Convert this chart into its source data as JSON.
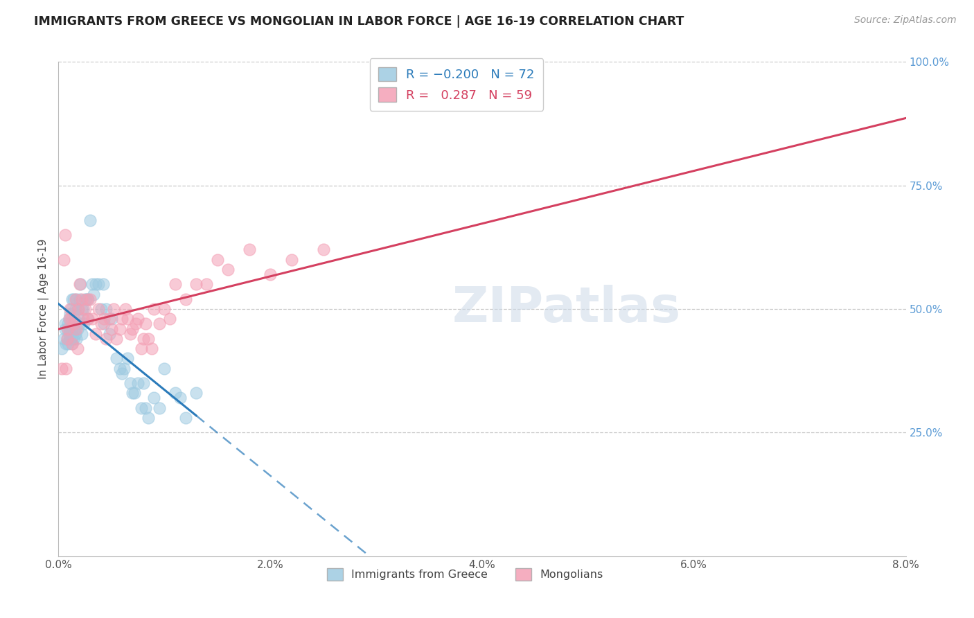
{
  "title": "IMMIGRANTS FROM GREECE VS MONGOLIAN IN LABOR FORCE | AGE 16-19 CORRELATION CHART",
  "source": "Source: ZipAtlas.com",
  "ylabel": "In Labor Force | Age 16-19",
  "xlim": [
    0.0,
    0.08
  ],
  "ylim": [
    0.0,
    1.0
  ],
  "xtick_vals": [
    0.0,
    0.02,
    0.04,
    0.06,
    0.08
  ],
  "xtick_labels": [
    "0.0%",
    "2.0%",
    "4.0%",
    "6.0%",
    "8.0%"
  ],
  "ytick_vals": [
    0.25,
    0.5,
    0.75,
    1.0
  ],
  "ytick_labels": [
    "25.0%",
    "50.0%",
    "75.0%",
    "100.0%"
  ],
  "greece_color": "#9ecae1",
  "mongolia_color": "#f4a0b5",
  "greece_line_color": "#2b7bba",
  "mongolia_line_color": "#d44060",
  "greece_R": -0.2,
  "greece_N": 72,
  "mongolia_R": 0.287,
  "mongolia_N": 59,
  "watermark": "ZIPatlas",
  "greece_x": [
    0.0003,
    0.0005,
    0.0006,
    0.0006,
    0.0007,
    0.0008,
    0.0008,
    0.0009,
    0.0009,
    0.001,
    0.001,
    0.001,
    0.0011,
    0.0011,
    0.0012,
    0.0012,
    0.0012,
    0.0013,
    0.0013,
    0.0014,
    0.0014,
    0.0015,
    0.0015,
    0.0016,
    0.0016,
    0.0017,
    0.0017,
    0.0018,
    0.0018,
    0.0019,
    0.002,
    0.002,
    0.0021,
    0.0022,
    0.0022,
    0.0023,
    0.0024,
    0.0025,
    0.0026,
    0.0027,
    0.0028,
    0.003,
    0.0032,
    0.0033,
    0.0035,
    0.0038,
    0.004,
    0.0042,
    0.0043,
    0.0045,
    0.0048,
    0.005,
    0.0055,
    0.0058,
    0.006,
    0.0062,
    0.0065,
    0.0068,
    0.007,
    0.0072,
    0.0075,
    0.0078,
    0.008,
    0.0082,
    0.0085,
    0.009,
    0.0095,
    0.01,
    0.011,
    0.0115,
    0.012,
    0.013
  ],
  "greece_y": [
    0.42,
    0.44,
    0.46,
    0.47,
    0.43,
    0.44,
    0.46,
    0.43,
    0.47,
    0.45,
    0.46,
    0.48,
    0.44,
    0.49,
    0.44,
    0.46,
    0.5,
    0.43,
    0.52,
    0.44,
    0.52,
    0.46,
    0.48,
    0.45,
    0.5,
    0.44,
    0.52,
    0.46,
    0.5,
    0.48,
    0.47,
    0.52,
    0.55,
    0.45,
    0.5,
    0.5,
    0.47,
    0.52,
    0.52,
    0.48,
    0.52,
    0.68,
    0.55,
    0.53,
    0.55,
    0.55,
    0.5,
    0.55,
    0.47,
    0.5,
    0.45,
    0.48,
    0.4,
    0.38,
    0.37,
    0.38,
    0.4,
    0.35,
    0.33,
    0.33,
    0.35,
    0.3,
    0.35,
    0.3,
    0.28,
    0.32,
    0.3,
    0.38,
    0.33,
    0.32,
    0.28,
    0.33
  ],
  "mongolia_x": [
    0.0003,
    0.0005,
    0.0006,
    0.0007,
    0.0008,
    0.0009,
    0.001,
    0.0011,
    0.0012,
    0.0013,
    0.0015,
    0.0016,
    0.0017,
    0.0018,
    0.0019,
    0.002,
    0.0022,
    0.0023,
    0.0025,
    0.0027,
    0.0028,
    0.003,
    0.0032,
    0.0035,
    0.0038,
    0.004,
    0.0043,
    0.0045,
    0.0048,
    0.005,
    0.0052,
    0.0055,
    0.0058,
    0.006,
    0.0063,
    0.0065,
    0.0068,
    0.007,
    0.0073,
    0.0075,
    0.0078,
    0.008,
    0.0082,
    0.0085,
    0.0088,
    0.009,
    0.0095,
    0.01,
    0.0105,
    0.011,
    0.012,
    0.013,
    0.014,
    0.015,
    0.016,
    0.018,
    0.02,
    0.022,
    0.025
  ],
  "mongolia_y": [
    0.38,
    0.6,
    0.65,
    0.38,
    0.44,
    0.46,
    0.48,
    0.5,
    0.48,
    0.43,
    0.47,
    0.52,
    0.46,
    0.42,
    0.5,
    0.55,
    0.52,
    0.48,
    0.5,
    0.52,
    0.48,
    0.52,
    0.48,
    0.45,
    0.5,
    0.47,
    0.48,
    0.44,
    0.48,
    0.46,
    0.5,
    0.44,
    0.46,
    0.48,
    0.5,
    0.48,
    0.45,
    0.46,
    0.47,
    0.48,
    0.42,
    0.44,
    0.47,
    0.44,
    0.42,
    0.5,
    0.47,
    0.5,
    0.48,
    0.55,
    0.52,
    0.55,
    0.55,
    0.6,
    0.58,
    0.62,
    0.57,
    0.6,
    0.62
  ]
}
